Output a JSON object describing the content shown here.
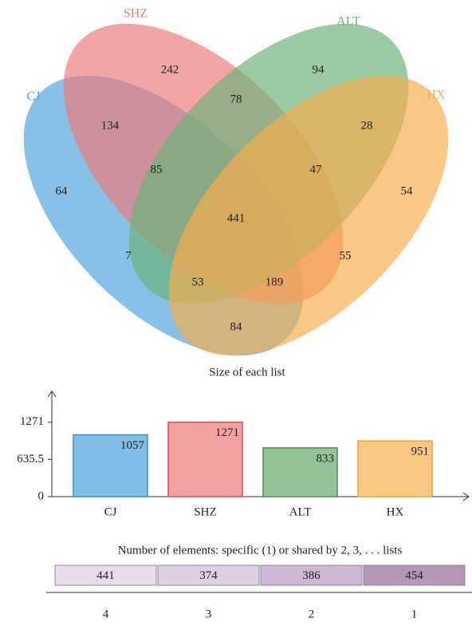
{
  "chart_data": [
    {
      "type": "venn",
      "sets": [
        {
          "name": "CJ",
          "color": "#4fa3dc"
        },
        {
          "name": "SHZ",
          "color": "#ec7b79"
        },
        {
          "name": "ALT",
          "color": "#6cb27a"
        },
        {
          "name": "HX",
          "color": "#f6ad4c"
        }
      ],
      "regions": [
        {
          "sets": [
            "CJ"
          ],
          "value": 64
        },
        {
          "sets": [
            "SHZ"
          ],
          "value": 242
        },
        {
          "sets": [
            "ALT"
          ],
          "value": 94
        },
        {
          "sets": [
            "HX"
          ],
          "value": 54
        },
        {
          "sets": [
            "CJ",
            "SHZ"
          ],
          "value": 134
        },
        {
          "sets": [
            "SHZ",
            "ALT"
          ],
          "value": 78
        },
        {
          "sets": [
            "ALT",
            "HX"
          ],
          "value": 28
        },
        {
          "sets": [
            "CJ",
            "ALT"
          ],
          "value": 7
        },
        {
          "sets": [
            "SHZ",
            "HX"
          ],
          "value": 55
        },
        {
          "sets": [
            "CJ",
            "HX"
          ],
          "value": 84
        },
        {
          "sets": [
            "CJ",
            "SHZ",
            "ALT"
          ],
          "value": 85
        },
        {
          "sets": [
            "SHZ",
            "ALT",
            "HX"
          ],
          "value": 47
        },
        {
          "sets": [
            "CJ",
            "ALT",
            "HX"
          ],
          "value": 53
        },
        {
          "sets": [
            "CJ",
            "SHZ",
            "HX"
          ],
          "value": 189
        },
        {
          "sets": [
            "CJ",
            "SHZ",
            "ALT",
            "HX"
          ],
          "value": 441
        }
      ]
    },
    {
      "type": "bar",
      "title": "Size of each list",
      "categories": [
        "CJ",
        "SHZ",
        "ALT",
        "HX"
      ],
      "values": [
        1057,
        1271,
        833,
        951
      ],
      "colors": [
        "#80bde6",
        "#f2a2a1",
        "#93c396",
        "#f9c882"
      ],
      "edge_colors": [
        "#3f8fd0",
        "#e04c57",
        "#4e8c55",
        "#efa033"
      ],
      "ylim": [
        0,
        1800
      ],
      "yticks": [
        0,
        635.5,
        1271
      ]
    },
    {
      "type": "strip",
      "title": "Number of elements: specific (1) or shared by 2, 3, . . . lists",
      "categories": [
        "4",
        "3",
        "2",
        "1"
      ],
      "values": [
        441,
        374,
        386,
        454
      ],
      "colors": [
        "#e8dcec",
        "#ddd0e3",
        "#cdb8d4",
        "#b797b8"
      ]
    }
  ]
}
